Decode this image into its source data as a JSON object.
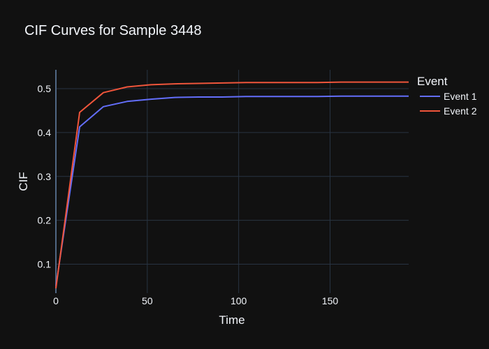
{
  "chart_data": {
    "type": "line",
    "title": "CIF Curves for Sample 3448",
    "xlabel": "Time",
    "ylabel": "CIF",
    "xlim": [
      0,
      193
    ],
    "ylim": [
      0.034,
      0.543
    ],
    "xticks": [
      0,
      50,
      100,
      150
    ],
    "yticks": [
      0.1,
      0.2,
      0.3,
      0.4,
      0.5
    ],
    "grid": true,
    "legend": {
      "title": "Event",
      "position": "right"
    },
    "series": [
      {
        "name": "Event 1",
        "color": "#636efa",
        "x": [
          0,
          13,
          26,
          39,
          52,
          65,
          78,
          91,
          104,
          117,
          130,
          143,
          156,
          169,
          182,
          193
        ],
        "y": [
          0.05,
          0.413,
          0.459,
          0.471,
          0.476,
          0.48,
          0.481,
          0.481,
          0.482,
          0.482,
          0.482,
          0.482,
          0.483,
          0.483,
          0.483,
          0.483
        ]
      },
      {
        "name": "Event 2",
        "color": "#ef553b",
        "x": [
          0,
          13,
          26,
          39,
          52,
          65,
          78,
          91,
          104,
          117,
          130,
          143,
          156,
          169,
          182,
          193
        ],
        "y": [
          0.045,
          0.446,
          0.491,
          0.504,
          0.509,
          0.511,
          0.512,
          0.513,
          0.514,
          0.514,
          0.514,
          0.514,
          0.515,
          0.515,
          0.515,
          0.515
        ]
      }
    ]
  }
}
